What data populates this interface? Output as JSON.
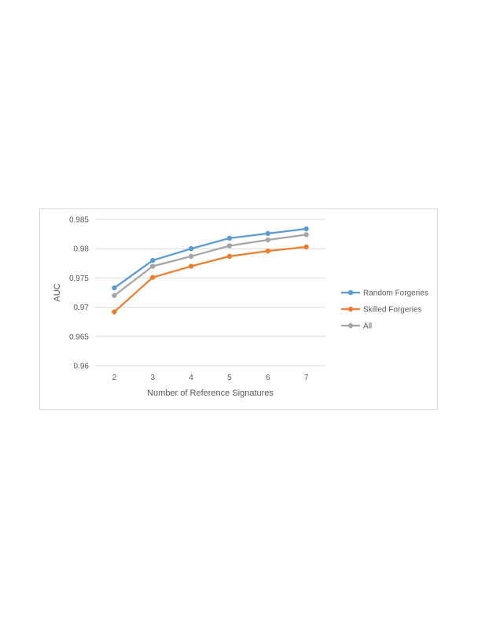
{
  "chart_data": {
    "type": "line",
    "title": "",
    "xlabel": "Number of Reference Signatures",
    "ylabel": "AUC",
    "x": [
      2,
      3,
      4,
      5,
      6,
      7
    ],
    "x_tick_labels": [
      "2",
      "3",
      "4",
      "5",
      "6",
      "7"
    ],
    "ylim": [
      0.96,
      0.985
    ],
    "y_ticks": [
      0.96,
      0.965,
      0.97,
      0.975,
      0.98,
      0.985
    ],
    "y_tick_labels": [
      "0.96",
      "0.965",
      "0.97",
      "0.975",
      "0.98",
      "0.985"
    ],
    "grid": true,
    "legend_position": "right",
    "series": [
      {
        "name": "Random Forgeries",
        "color": "#5b9bd5",
        "values": [
          0.9733,
          0.978,
          0.98,
          0.9818,
          0.9826,
          0.9834
        ]
      },
      {
        "name": "Skilled Forgeries",
        "color": "#ed7d31",
        "values": [
          0.9692,
          0.9751,
          0.977,
          0.9787,
          0.9796,
          0.9803
        ]
      },
      {
        "name": "All",
        "color": "#a5a5a5",
        "values": [
          0.972,
          0.977,
          0.9787,
          0.9805,
          0.9815,
          0.9824
        ]
      }
    ]
  }
}
